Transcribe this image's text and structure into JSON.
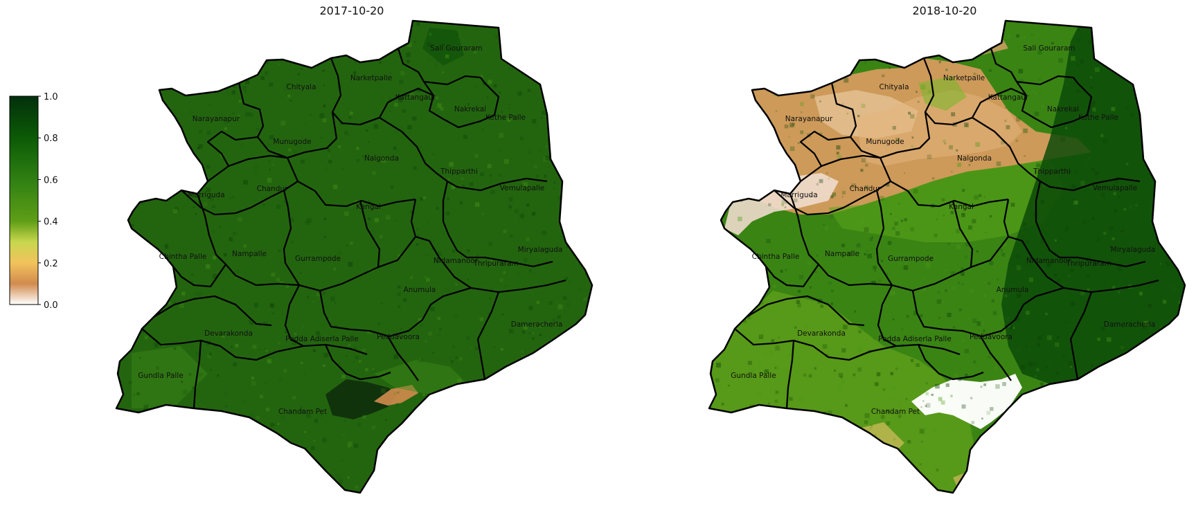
{
  "colorbar": {
    "ticks": [
      "1.0",
      "0.8",
      "0.6",
      "0.4",
      "0.2",
      "0.0"
    ],
    "min": 0.0,
    "max": 1.0,
    "stops": [
      {
        "v": 0.0,
        "c": "#ffffff"
      },
      {
        "v": 0.1,
        "c": "#d18b4e"
      },
      {
        "v": 0.2,
        "c": "#f2c35c"
      },
      {
        "v": 0.3,
        "c": "#c8d74e"
      },
      {
        "v": 0.4,
        "c": "#5f9e16"
      },
      {
        "v": 0.6,
        "c": "#2f7f13"
      },
      {
        "v": 0.8,
        "c": "#0c5a06"
      },
      {
        "v": 1.0,
        "c": "#02300c"
      }
    ]
  },
  "panels": [
    {
      "title": "2017-10-20",
      "base_color": "#23650f",
      "mandals": [
        "Sali Gouraram",
        "Narketpalle",
        "Chityala",
        "Kattangaur",
        "Nakrekal",
        "Kethe Palle",
        "Narayanapur",
        "Munugode",
        "Nalgonda",
        "Thipparthi",
        "Chandur",
        "Marriguda",
        "Kangal",
        "Vemulapalle",
        "Nampalle",
        "Chintha Palle",
        "Gurrampode",
        "Miryalaguda",
        "Nidamanoor",
        "Thripuraram",
        "Anumula",
        "Devarakonda",
        "Pedda Adiserla Palle",
        "Peddavoora",
        "Dameracherla",
        "Gundla Palle",
        "Chandam Pet"
      ]
    },
    {
      "title": "2018-10-20",
      "base_color": "#3a8414",
      "mandals": [
        "Sali Gouraram",
        "Narketpalle",
        "Chityala",
        "Kattangaur",
        "Nakrekal",
        "Kethe Palle",
        "Narayanapur",
        "Munugode",
        "Nalgonda",
        "Thipparthi",
        "Chandur",
        "Marriguda",
        "Kangal",
        "Vemulapalle",
        "Nampalle",
        "Chintha Palle",
        "Gurrampode",
        "Miryalaguda",
        "Nidamanoor",
        "Thripuraram",
        "Anumula",
        "Devarakonda",
        "Pedda Adiserla Palle",
        "Peddavoora",
        "Dameracherla",
        "Gundla Palle",
        "Chandam Pet"
      ]
    }
  ]
}
